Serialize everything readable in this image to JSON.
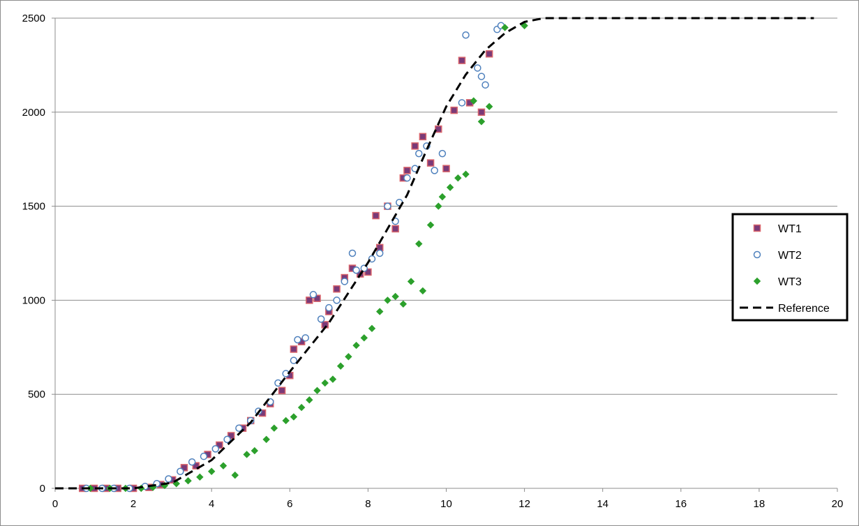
{
  "chart_data": {
    "type": "scatter",
    "title": "",
    "xlabel": "",
    "ylabel": "",
    "xlim": [
      0,
      20
    ],
    "ylim": [
      0,
      2500
    ],
    "x_ticks": [
      0,
      2,
      4,
      6,
      8,
      10,
      12,
      14,
      16,
      18,
      20
    ],
    "y_ticks": [
      0,
      500,
      1000,
      1500,
      2000,
      2500
    ],
    "x_tick_labels": [
      "0",
      "2",
      "4",
      "6",
      "8",
      "10",
      "12",
      "14",
      "16",
      "18",
      "20"
    ],
    "y_tick_labels": [
      "0",
      "500",
      "1000",
      "1500",
      "2000",
      "2500"
    ],
    "grid": "horizontal",
    "legend_position": "right",
    "series": [
      {
        "name": "WT1",
        "marker": "square",
        "fill": "#7a3a78",
        "stroke": "#d9646b",
        "x": [
          0.7,
          1.0,
          1.3,
          1.6,
          2.0,
          2.4,
          2.7,
          3.0,
          3.3,
          3.6,
          3.9,
          4.2,
          4.5,
          4.8,
          5.0,
          5.3,
          5.5,
          5.8,
          6.0,
          6.1,
          6.3,
          6.5,
          6.7,
          6.9,
          7.0,
          7.2,
          7.4,
          7.6,
          7.8,
          8.0,
          8.2,
          8.3,
          8.5,
          8.7,
          8.9,
          9.0,
          9.2,
          9.4,
          9.6,
          9.8,
          10.0,
          10.2,
          10.4,
          10.6,
          10.9,
          11.1
        ],
        "y": [
          0,
          0,
          0,
          0,
          0,
          5,
          20,
          45,
          110,
          120,
          180,
          230,
          280,
          320,
          360,
          400,
          450,
          520,
          600,
          740,
          780,
          1000,
          1010,
          870,
          940,
          1060,
          1120,
          1170,
          1140,
          1150,
          1450,
          1280,
          1500,
          1380,
          1650,
          1690,
          1820,
          1870,
          1730,
          1910,
          1700,
          2010,
          2275,
          2050,
          2000,
          2310
        ]
      },
      {
        "name": "WT2",
        "marker": "circle",
        "fill": "#ffffff",
        "stroke": "#4f81bd",
        "x": [
          0.8,
          1.2,
          1.5,
          1.9,
          2.3,
          2.6,
          2.9,
          3.2,
          3.5,
          3.8,
          4.1,
          4.4,
          4.7,
          5.0,
          5.2,
          5.5,
          5.7,
          5.9,
          6.1,
          6.2,
          6.4,
          6.6,
          6.8,
          7.0,
          7.2,
          7.4,
          7.6,
          7.7,
          7.9,
          8.1,
          8.3,
          8.5,
          8.7,
          8.8,
          9.0,
          9.2,
          9.3,
          9.5,
          9.7,
          9.9,
          10.4,
          10.5,
          10.8,
          10.9,
          11.0,
          11.3,
          11.4
        ],
        "y": [
          0,
          0,
          0,
          0,
          10,
          25,
          50,
          90,
          140,
          170,
          210,
          260,
          320,
          360,
          410,
          460,
          560,
          610,
          680,
          790,
          800,
          1030,
          900,
          960,
          1000,
          1100,
          1250,
          1160,
          1170,
          1220,
          1250,
          1500,
          1420,
          1520,
          1650,
          1700,
          1780,
          1820,
          1690,
          1780,
          2050,
          2410,
          2235,
          2190,
          2145,
          2440,
          2460
        ]
      },
      {
        "name": "WT3",
        "marker": "diamond",
        "fill": "#2ca02c",
        "stroke": "#2ca02c",
        "x": [
          0.9,
          1.4,
          1.8,
          2.2,
          2.5,
          2.8,
          3.1,
          3.4,
          3.7,
          4.0,
          4.3,
          4.6,
          4.9,
          5.1,
          5.4,
          5.6,
          5.9,
          6.1,
          6.3,
          6.5,
          6.7,
          6.9,
          7.1,
          7.3,
          7.5,
          7.7,
          7.9,
          8.1,
          8.3,
          8.5,
          8.7,
          8.9,
          9.1,
          9.3,
          9.4,
          9.6,
          9.8,
          9.9,
          10.1,
          10.3,
          10.5,
          10.7,
          10.9,
          11.1,
          11.5,
          12.0
        ],
        "y": [
          0,
          0,
          0,
          0,
          5,
          15,
          25,
          40,
          60,
          90,
          120,
          70,
          180,
          200,
          260,
          320,
          360,
          380,
          430,
          470,
          520,
          560,
          580,
          650,
          700,
          760,
          800,
          850,
          940,
          1000,
          1020,
          980,
          1100,
          1300,
          1050,
          1400,
          1500,
          1550,
          1600,
          1650,
          1670,
          2060,
          1950,
          2030,
          2450,
          2460
        ]
      },
      {
        "name": "Reference",
        "type": "line",
        "dash": "dashed",
        "color": "#000000",
        "x": [
          0,
          0.5,
          1.0,
          2.0,
          3.0,
          4.0,
          5.0,
          6.0,
          7.0,
          8.0,
          9.0,
          9.5,
          10.0,
          10.5,
          11.0,
          11.5,
          12.0,
          12.5,
          13.0,
          14.0,
          16.0,
          18.0,
          19.4
        ],
        "y": [
          0,
          0,
          0,
          0,
          30,
          150,
          350,
          620,
          880,
          1200,
          1560,
          1800,
          2030,
          2200,
          2330,
          2420,
          2480,
          2500,
          2500,
          2500,
          2500,
          2500,
          2500
        ]
      }
    ]
  }
}
